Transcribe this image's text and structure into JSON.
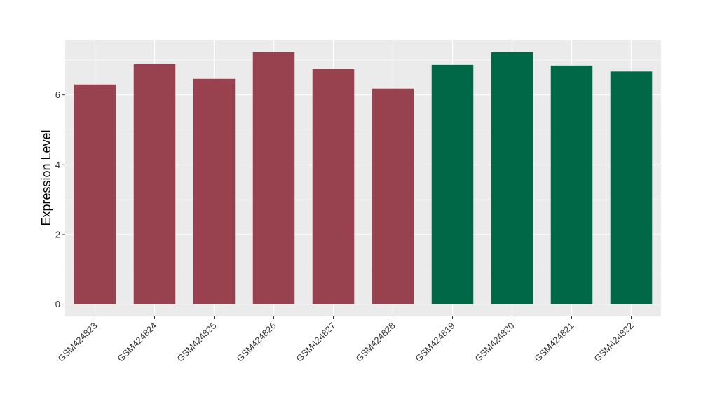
{
  "chart_data": {
    "type": "bar",
    "title": "",
    "xlabel": "",
    "ylabel": "Expression Level",
    "categories": [
      "GSM424823",
      "GSM424824",
      "GSM424825",
      "GSM424826",
      "GSM424827",
      "GSM424828",
      "GSM424819",
      "GSM424820",
      "GSM424821",
      "GSM424822"
    ],
    "values": [
      6.3,
      6.88,
      6.46,
      7.22,
      6.74,
      6.18,
      6.86,
      7.22,
      6.84,
      6.67
    ],
    "bar_colors": [
      "#99424f",
      "#99424f",
      "#99424f",
      "#99424f",
      "#99424f",
      "#99424f",
      "#006747",
      "#006747",
      "#006747",
      "#006747"
    ],
    "ylim": [
      -0.35,
      7.58
    ],
    "yticks": [
      0,
      2,
      4,
      6
    ],
    "grid": true,
    "legend": "none",
    "panel_background": "#ebebeb",
    "grid_color": "#ffffff"
  }
}
